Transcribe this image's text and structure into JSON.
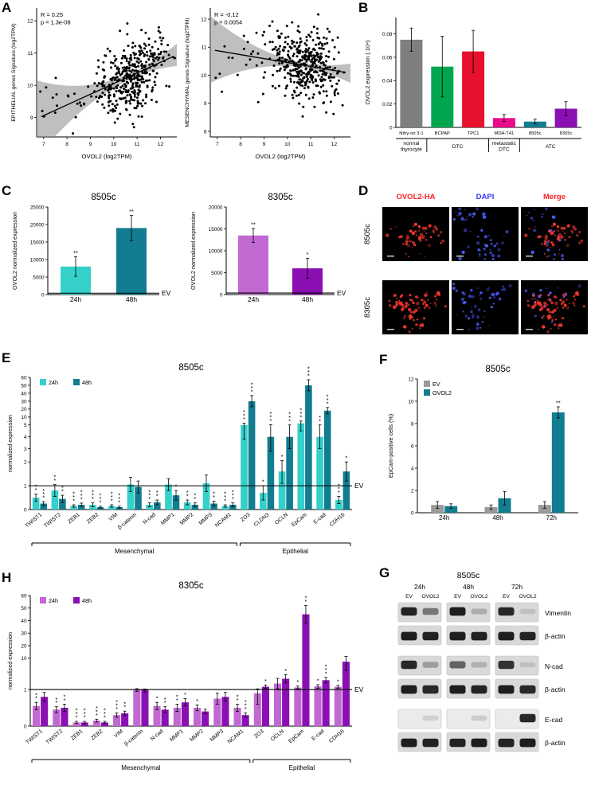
{
  "panel_labels": {
    "A": "A",
    "B": "B",
    "C": "C",
    "D": "D",
    "E": "E",
    "F": "F",
    "G": "G",
    "H": "H"
  },
  "colors": {
    "cyan_24h": "#35d0ca",
    "teal_48h": "#127d90",
    "light_purple_24h": "#c168d1",
    "dark_purple_48h": "#8b10b4",
    "gray_ev": "#9a9a9a",
    "scatter_band": "#8a8a8a"
  },
  "chart_data": [
    {
      "id": "epithelial-scatter",
      "type": "scatter",
      "xlabel": "OVOL2  (log2TPM)",
      "ylabel": "EPITHELIAL genes Signature (log2TPM)",
      "annotation": [
        "R = 0.25",
        "p = 1.3e-08"
      ],
      "R": 0.25,
      "p_value": "1.3e-08",
      "xlim": [
        6.7,
        12.7
      ],
      "ylim": [
        8.4,
        12.4
      ],
      "xticks": [
        7,
        8,
        9,
        10,
        11,
        12
      ],
      "yticks": [
        9,
        10,
        11,
        12
      ],
      "trend": {
        "x1": 6.9,
        "y1": 9.03,
        "x2": 12.5,
        "y2": 10.88
      },
      "n_points": 420,
      "seed": 7,
      "cloud": {
        "x_mean": 10.75,
        "x_sd": 0.75,
        "slope": 0.33,
        "y_at_mean": 10.3,
        "y_noise": 0.52,
        "outlier_frac": 0.07
      }
    },
    {
      "id": "mesenchymal-scatter",
      "type": "scatter",
      "xlabel": "OVOL2  (log2TPM)",
      "ylabel": "MESENCHYMAL genes Signature (log2TPM)",
      "annotation": [
        "R = -0.12",
        "p = 0.0054"
      ],
      "R": -0.12,
      "p_value": "0.0054",
      "xlim": [
        6.7,
        12.7
      ],
      "ylim": [
        7.8,
        12.4
      ],
      "xticks": [
        7,
        8,
        9,
        10,
        11,
        12
      ],
      "yticks": [
        8,
        9,
        10,
        11,
        12
      ],
      "trend": {
        "x1": 6.9,
        "y1": 10.89,
        "x2": 12.5,
        "y2": 10.1
      },
      "n_points": 420,
      "seed": 13,
      "cloud": {
        "x_mean": 10.75,
        "x_sd": 0.75,
        "slope": -0.14,
        "y_at_mean": 10.35,
        "y_noise": 0.6,
        "outlier_frac": 0.07
      }
    },
    {
      "id": "cell-line-expression",
      "type": "bar",
      "ylabel": "OVOL2 expression (·10⁴)",
      "categories": [
        "Nthy-ori 3-1",
        "BCPAP",
        "TPC1",
        "MDA-T41",
        "8505c",
        "8305c"
      ],
      "values": [
        0.075,
        0.052,
        0.065,
        0.008,
        0.005,
        0.016
      ],
      "errors": [
        0.01,
        0.026,
        0.018,
        0.003,
        0.002,
        0.006
      ],
      "colors": [
        "#7f7f7f",
        "#00a64f",
        "#e8112d",
        "#ea0b8c",
        "#127d90",
        "#8b10b4"
      ],
      "ylim": [
        0,
        0.094
      ],
      "yticks": [
        0,
        0.02,
        0.04,
        0.06,
        0.08
      ],
      "groups": [
        {
          "label": "normal\nthyrocyte",
          "span": [
            0,
            0
          ]
        },
        {
          "label": "DTC",
          "span": [
            1,
            2
          ]
        },
        {
          "label": "metastatic\nDTC",
          "span": [
            3,
            3
          ]
        },
        {
          "label": "ATC",
          "span": [
            4,
            5
          ]
        }
      ]
    },
    {
      "id": "ovol2-8505c",
      "type": "bar",
      "title": "8505c",
      "ylabel": "OVOL2 normalized expression",
      "categories": [
        "24h",
        "48h"
      ],
      "values": [
        8000,
        19000
      ],
      "errors": [
        2800,
        3600
      ],
      "stars": [
        "**",
        "**"
      ],
      "colors": [
        "#35d0ca",
        "#127d90"
      ],
      "ylim": [
        0,
        25000
      ],
      "yticks": [
        0,
        5000,
        10000,
        15000,
        20000,
        25000
      ],
      "baseline": {
        "label": "EV",
        "value": 400
      }
    },
    {
      "id": "ovol2-8305c",
      "type": "bar",
      "title": "8305c",
      "ylabel": "OVOL2 normalized expression",
      "categories": [
        "24h",
        "48h"
      ],
      "values": [
        13500,
        6000
      ],
      "errors": [
        1600,
        2300
      ],
      "stars": [
        "**",
        "*"
      ],
      "colors": [
        "#c168d1",
        "#8b10b4"
      ],
      "ylim": [
        0,
        20000
      ],
      "yticks": [
        0,
        5000,
        10000,
        15000,
        20000
      ],
      "baseline": {
        "label": "EV",
        "value": 350
      }
    },
    {
      "id": "emt-8505c",
      "type": "bar",
      "title": "8505c",
      "ylabel": "normalized expression",
      "legend": [
        "24h",
        "48h"
      ],
      "series_colors": [
        "#35d0ca",
        "#127d90"
      ],
      "categories": [
        "TWIST1",
        "TWIST2",
        "ZEB1",
        "ZEB2",
        "VIM",
        "β-catenin",
        "N-cad",
        "MMP1",
        "MMP2",
        "MMP3",
        "NCAM1",
        "ZO3",
        "CLDN3",
        "OCLN",
        "EpCam",
        "E-cad",
        "CDH16"
      ],
      "series": [
        {
          "name": "24h",
          "values": [
            0.5,
            0.8,
            0.15,
            0.2,
            0.15,
            1.05,
            0.2,
            1.05,
            0.3,
            1.1,
            0.15,
            5.0,
            0.7,
            1.6,
            6.0,
            4.0,
            0.4
          ],
          "errors": [
            0.15,
            0.25,
            0.05,
            0.08,
            0.05,
            0.3,
            0.08,
            0.25,
            0.1,
            0.35,
            0.05,
            1.2,
            0.3,
            0.5,
            1.5,
            1.0,
            0.15
          ],
          "stars": [
            "**",
            "**",
            "***",
            "***",
            "***",
            "",
            "***",
            "",
            "**",
            "",
            "***",
            "***",
            "*",
            "*",
            "***",
            "**",
            "***"
          ]
        },
        {
          "name": "48h",
          "values": [
            0.25,
            0.45,
            0.2,
            0.1,
            0.1,
            0.95,
            0.3,
            0.6,
            0.2,
            0.25,
            0.2,
            30,
            4.0,
            4.0,
            50,
            18,
            1.6
          ],
          "errors": [
            0.08,
            0.15,
            0.07,
            0.04,
            0.04,
            0.25,
            0.1,
            0.2,
            0.08,
            0.1,
            0.08,
            7,
            1.2,
            1.0,
            7,
            4,
            0.4
          ],
          "stars": [
            "***",
            "**",
            "***",
            "***",
            "***",
            "",
            "**",
            "*",
            "**",
            "**",
            "***",
            "***",
            "***",
            "***",
            "***",
            "***",
            "*"
          ]
        }
      ],
      "yticks": [
        0,
        1,
        2,
        3,
        4,
        5,
        10,
        20,
        30,
        40,
        50,
        60
      ],
      "scale_anchors": [
        [
          0,
          0
        ],
        [
          1,
          0.18
        ],
        [
          2,
          0.36
        ],
        [
          3,
          0.46
        ],
        [
          4,
          0.55
        ],
        [
          5,
          0.64
        ],
        [
          10,
          0.7
        ],
        [
          20,
          0.76
        ],
        [
          30,
          0.82
        ],
        [
          40,
          0.88
        ],
        [
          50,
          0.94
        ],
        [
          60,
          1.0
        ]
      ],
      "baseline": {
        "label": "EV",
        "value": 1
      },
      "group_brackets": [
        {
          "label": "Mesenchymal",
          "span": [
            0,
            10
          ]
        },
        {
          "label": "Epithelial",
          "span": [
            11,
            16
          ]
        }
      ]
    },
    {
      "id": "epcam-facs",
      "type": "bar",
      "title": "8505c",
      "ylabel": "EpCam-positive cells (%)",
      "legend": [
        "EV",
        "OVOL2"
      ],
      "series_colors": [
        "#9a9a9a",
        "#127d90"
      ],
      "categories": [
        "24h",
        "48h",
        "72h"
      ],
      "series": [
        {
          "name": "EV",
          "values": [
            0.7,
            0.5,
            0.7
          ],
          "errors": [
            0.3,
            0.2,
            0.3
          ],
          "stars": [
            "",
            "",
            ""
          ]
        },
        {
          "name": "OVOL2",
          "values": [
            0.6,
            1.3,
            9.0
          ],
          "errors": [
            0.2,
            0.6,
            0.5
          ],
          "stars": [
            "",
            "",
            "**"
          ]
        }
      ],
      "ylim": [
        0,
        12
      ],
      "yticks": [
        0,
        2,
        4,
        6,
        8,
        10,
        12
      ]
    },
    {
      "id": "emt-8305c",
      "type": "bar",
      "title": "8305c",
      "ylabel": "normalized expression",
      "legend": [
        "24h",
        "48h"
      ],
      "series_colors": [
        "#c168d1",
        "#8b10b4"
      ],
      "categories": [
        "TWIST1",
        "TWIST2",
        "ZEB1",
        "ZEB2",
        "VIM",
        "β-catenin",
        "N-cad",
        "MMP1",
        "MMP2",
        "MMP3",
        "NCAM1",
        "ZO3",
        "OCLN",
        "EpCam",
        "E-cad",
        "CDH16"
      ],
      "series": [
        {
          "name": "24h",
          "values": [
            0.55,
            0.45,
            0.1,
            0.15,
            0.3,
            1.1,
            0.55,
            0.5,
            0.5,
            0.75,
            0.5,
            0.9,
            2.7,
            1.6,
            1.9,
            1.8
          ],
          "errors": [
            0.1,
            0.08,
            0.03,
            0.04,
            0.06,
            0.15,
            0.1,
            0.1,
            0.08,
            0.15,
            0.1,
            0.3,
            1.5,
            0.4,
            0.5,
            0.4
          ],
          "stars": [
            "**",
            "**",
            "***",
            "***",
            "***",
            "",
            "*",
            "**",
            "*",
            "",
            "**",
            "",
            "",
            "*",
            "*",
            "*"
          ]
        },
        {
          "name": "48h",
          "values": [
            0.8,
            0.5,
            0.1,
            0.1,
            0.35,
            1.05,
            0.45,
            0.65,
            0.4,
            0.8,
            0.3,
            1.8,
            4.1,
            45,
            3.7,
            9.0
          ],
          "errors": [
            0.12,
            0.1,
            0.03,
            0.03,
            0.06,
            0.12,
            0.08,
            0.1,
            0.06,
            0.12,
            0.06,
            0.5,
            1.2,
            7,
            0.8,
            2.5
          ],
          "stars": [
            "",
            "**",
            "***",
            "***",
            "**",
            "",
            "**",
            "*",
            "",
            "",
            "***",
            "*",
            "*",
            "**",
            "***",
            ""
          ]
        }
      ],
      "yticks": [
        0,
        1,
        10,
        20,
        30,
        40,
        50,
        60
      ],
      "scale_anchors": [
        [
          0,
          0
        ],
        [
          1,
          0.28
        ],
        [
          10,
          0.52
        ],
        [
          20,
          0.616
        ],
        [
          30,
          0.712
        ],
        [
          40,
          0.808
        ],
        [
          50,
          0.904
        ],
        [
          60,
          1.0
        ]
      ],
      "baseline": {
        "label": "EV",
        "value": 1
      },
      "group_brackets": [
        {
          "label": "Mesenchymal",
          "span": [
            0,
            10
          ]
        },
        {
          "label": "Epithelial",
          "span": [
            11,
            15
          ]
        }
      ]
    }
  ],
  "microscopy": {
    "col_headers": [
      {
        "label": "OVOL2-HA",
        "color": "#ff2020"
      },
      {
        "label": "DAPI",
        "color": "#3535ff"
      },
      {
        "label": "Merge",
        "color": "#ff2020"
      }
    ],
    "row_labels": [
      "8505c",
      "8305c"
    ],
    "dot_colors": {
      "red": "#ff3b30",
      "blue": "#4e5dff"
    },
    "rows": [
      {
        "cells": [
          {
            "red": 55,
            "blue": 0,
            "seed": 11,
            "seed_blue": 12
          },
          {
            "red": 0,
            "blue": 60,
            "seed": 11,
            "seed_blue": 12
          },
          {
            "red": 55,
            "blue": 26,
            "seed": 11,
            "seed_blue": 12
          }
        ]
      },
      {
        "cells": [
          {
            "red": 95,
            "blue": 0,
            "seed": 21,
            "seed_blue": 22
          },
          {
            "red": 0,
            "blue": 55,
            "seed": 21,
            "seed_blue": 22
          },
          {
            "red": 95,
            "blue": 22,
            "seed": 21,
            "seed_blue": 22
          }
        ]
      }
    ]
  },
  "blots": {
    "title": "8505c",
    "time_labels": [
      "24h",
      "48h",
      "72h"
    ],
    "lane_labels": [
      "EV",
      "OVOL2"
    ],
    "rows": [
      {
        "label": "Vimentin",
        "bands": [
          0.92,
          0.5,
          0.95,
          0.22,
          0.9,
          0.12
        ],
        "gap_after": false
      },
      {
        "label": "β-actin",
        "bands": [
          0.95,
          0.92,
          0.95,
          0.93,
          0.95,
          0.92
        ],
        "gap_after": true
      },
      {
        "label": "N-cad",
        "bands": [
          0.9,
          0.3,
          0.6,
          0.2,
          0.85,
          0.12
        ],
        "gap_after": false
      },
      {
        "label": "β-actin",
        "bands": [
          0.95,
          0.9,
          0.95,
          0.92,
          0.95,
          0.9
        ],
        "gap_after": true
      },
      {
        "label": "E-cad",
        "bands": [
          0.05,
          0.12,
          0.05,
          0.15,
          0.08,
          0.9
        ],
        "gap_after": false
      },
      {
        "label": "β-actin",
        "bands": [
          0.95,
          0.92,
          0.92,
          0.95,
          0.93,
          0.95
        ],
        "gap_after": false
      }
    ]
  }
}
